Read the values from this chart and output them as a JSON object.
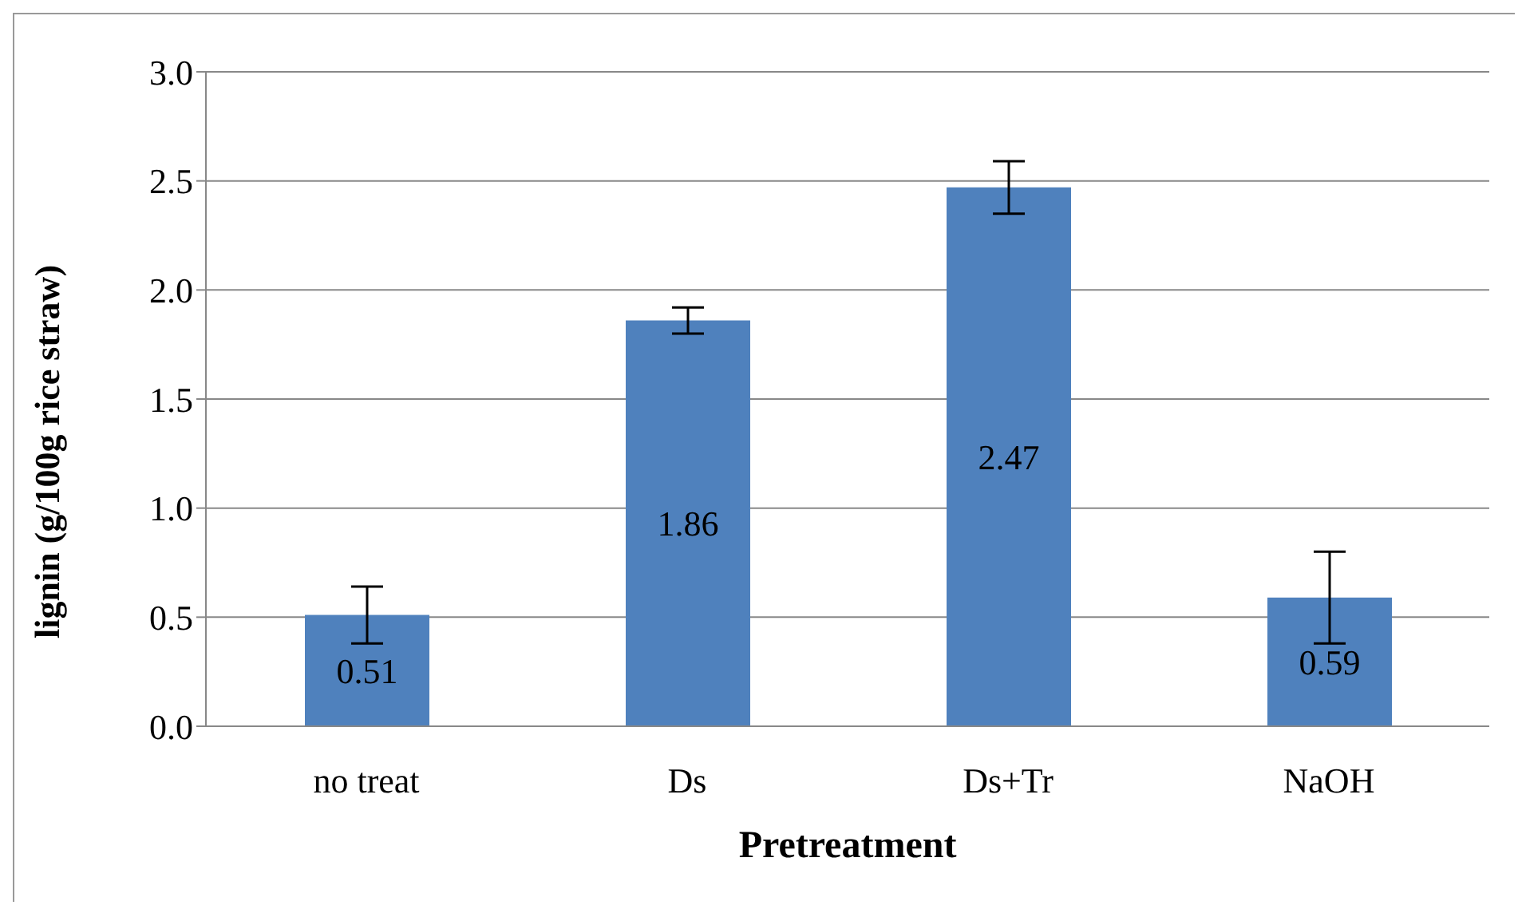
{
  "chart_data": {
    "type": "bar",
    "xlabel": "Pretreatment",
    "ylabel": "lignin (g/100g rice straw)",
    "categories": [
      "no treat",
      "Ds",
      "Ds+Tr",
      "NaOH"
    ],
    "values": [
      0.51,
      1.86,
      2.47,
      0.59
    ],
    "errors": [
      0.13,
      0.06,
      0.12,
      0.21
    ],
    "color": "#4f81bd",
    "ylim": [
      0,
      3
    ],
    "yticks": [
      {
        "value": 0,
        "label": "0.0"
      },
      {
        "value": 0.5,
        "label": "0.5"
      },
      {
        "value": 1,
        "label": "1.0"
      },
      {
        "value": 1.5,
        "label": "1.5"
      },
      {
        "value": 2,
        "label": "2.0"
      },
      {
        "value": 2.5,
        "label": "2.5"
      },
      {
        "value": 3,
        "label": "3.0"
      }
    ],
    "grid": "y",
    "data_labels": true,
    "legend": false
  }
}
